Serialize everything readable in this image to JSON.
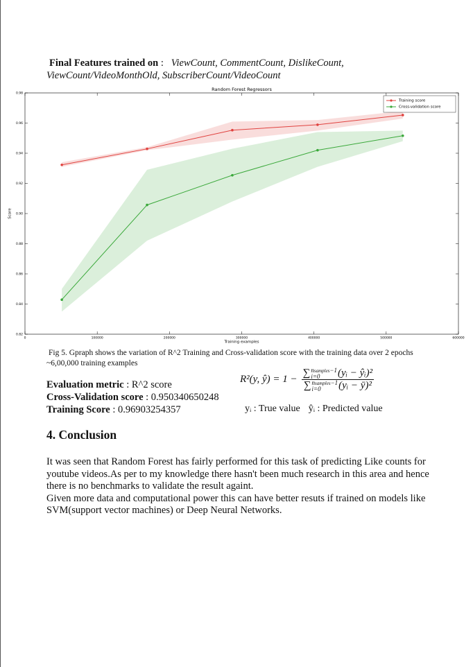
{
  "features": {
    "label": "Final Features trained on",
    "separator": ":",
    "list": "ViewCount, CommentCount, DislikeCount, ViewCount/VideoMonthOld, SubscriberCount/VideoCount"
  },
  "chart_data": {
    "type": "line",
    "title": "Random Forest Regressors",
    "x_label": "Training examples",
    "y_label": "Score",
    "x": [
      51000,
      169000,
      287000,
      405000,
      523000
    ],
    "series": [
      {
        "name": "Training score",
        "color": "#e0423f",
        "values": [
          0.9323,
          0.9429,
          0.9553,
          0.9589,
          0.9653
        ],
        "lower": [
          0.931,
          0.942,
          0.949,
          0.955,
          0.963
        ],
        "upper": [
          0.934,
          0.944,
          0.961,
          0.962,
          0.968
        ]
      },
      {
        "name": "Cross-validation score",
        "color": "#3aa83a",
        "values": [
          0.8429,
          0.9057,
          0.9254,
          0.942,
          0.9516
        ],
        "lower": [
          0.835,
          0.882,
          0.908,
          0.931,
          0.948
        ],
        "upper": [
          0.85,
          0.929,
          0.943,
          0.954,
          0.955
        ]
      }
    ],
    "xlim": [
      0,
      600000
    ],
    "ylim": [
      0.82,
      0.98
    ],
    "xticks": [
      0,
      100000,
      200000,
      300000,
      400000,
      500000,
      600000
    ],
    "yticks": [
      0.82,
      0.84,
      0.86,
      0.88,
      {
        "value": 0.9,
        "label": "0.90"
      },
      0.92,
      0.94,
      0.96,
      0.98
    ],
    "legend": "upper right",
    "grid": false
  },
  "caption": "Fig 5. Gpraph shows the variation of R^2 Training and Cross-validation score with the training data over 2 epochs  ~6,00,000 training examples",
  "metrics": [
    {
      "label": "Evaluation metric",
      "value": ": R^2 score"
    },
    {
      "label": "Cross-Validation score",
      "value": ": 0.950340650248"
    },
    {
      "label": "Training Score",
      "value": ": 0.96903254357"
    }
  ],
  "formula": {
    "lhs": "R²(y, ŷ) = 1 −",
    "sum": "∑",
    "upper_n": "n",
    "upper_sub": "samples",
    "upper_rest": "−1",
    "lower": "i=0",
    "num_term": "(yᵢ − ŷᵢ)²",
    "den_term": "(yᵢ − ȳ)²"
  },
  "notes": [
    "yᵢ : True value",
    "ŷᵢ : Predicted value"
  ],
  "conclusion": {
    "heading": "4. Conclusion",
    "paragraphs": [
      "It was seen that Random Forest has fairly performed for this task of predicting Like counts for youtube videos.As per to my knowledge there hasn't been much research in this area and hence there is no benchmarks to validate the result againt.",
      "Given more data and computational power this can have better resuts if trained on models like SVM(support vector machines) or Deep Neural Networks."
    ]
  }
}
